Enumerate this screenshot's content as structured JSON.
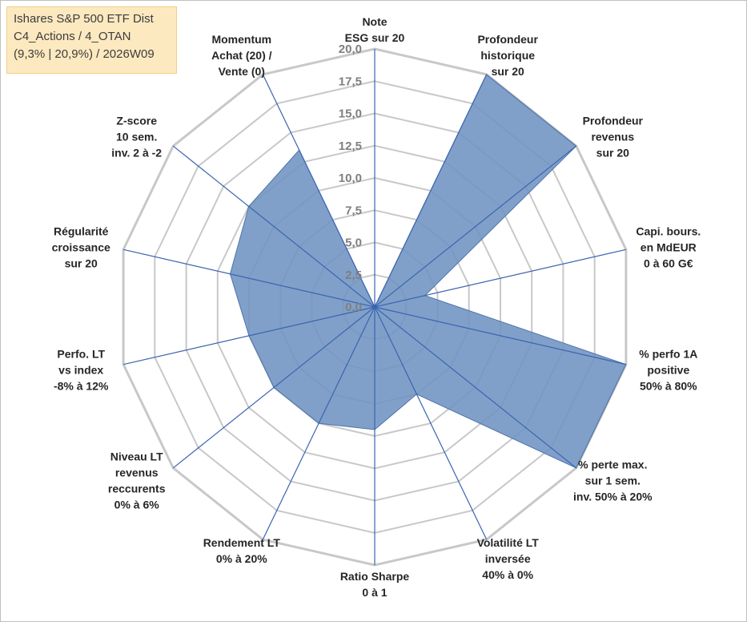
{
  "info": {
    "line1": "Ishares S&P 500 ETF Dist",
    "line2": "C4_Actions / 4_OTAN",
    "line3": "(9,3% | 20,9%) / 2026W09"
  },
  "colors": {
    "fill": "#6e93c2",
    "stroke": "#4d74aa",
    "grid": "#c8c8c8",
    "spoke": "#3a64b0"
  },
  "chart_data": {
    "type": "radar",
    "title": "",
    "rmin": 0,
    "rmax": 20,
    "ticks": [
      "0,0",
      "2,5",
      "5,0",
      "7,5",
      "10,0",
      "12,5",
      "15,0",
      "17,5",
      "20,0"
    ],
    "axes": [
      {
        "lines": [
          "Note",
          "ESG sur 20"
        ],
        "value": 0
      },
      {
        "lines": [
          "Profondeur",
          "historique",
          "sur 20"
        ],
        "value": 20
      },
      {
        "lines": [
          "Profondeur",
          "revenus",
          "sur 20"
        ],
        "value": 20
      },
      {
        "lines": [
          "Capi. bours.",
          "en MdEUR",
          "0 à 60 G€"
        ],
        "value": 4
      },
      {
        "lines": [
          "% perfo 1A",
          "positive",
          "50% à 80%"
        ],
        "value": 20
      },
      {
        "lines": [
          "% perte max.",
          "sur 1 sem.",
          "inv. 50% à 20%"
        ],
        "value": 20
      },
      {
        "lines": [
          "Volatilité LT",
          "inversée",
          "40% à 0%"
        ],
        "value": 7.5
      },
      {
        "lines": [
          "Ratio Sharpe",
          "0 à 1"
        ],
        "value": 9.5
      },
      {
        "lines": [
          "Rendement LT",
          "0% à 20%"
        ],
        "value": 10
      },
      {
        "lines": [
          "Niveau LT",
          "revenus",
          "reccurents",
          "0% à 6%"
        ],
        "value": 10
      },
      {
        "lines": [
          "Perfo. LT",
          "vs index",
          "-8% à 12%"
        ],
        "value": 10
      },
      {
        "lines": [
          "Régularité",
          "croissance",
          "sur 20"
        ],
        "value": 11.5
      },
      {
        "lines": [
          "Z-score",
          "10 sem.",
          "inv. 2 à -2"
        ],
        "value": 12.5
      },
      {
        "lines": [
          "Momentum",
          "Achat (20) /",
          "Vente (0)"
        ],
        "value": 13.5
      }
    ]
  }
}
